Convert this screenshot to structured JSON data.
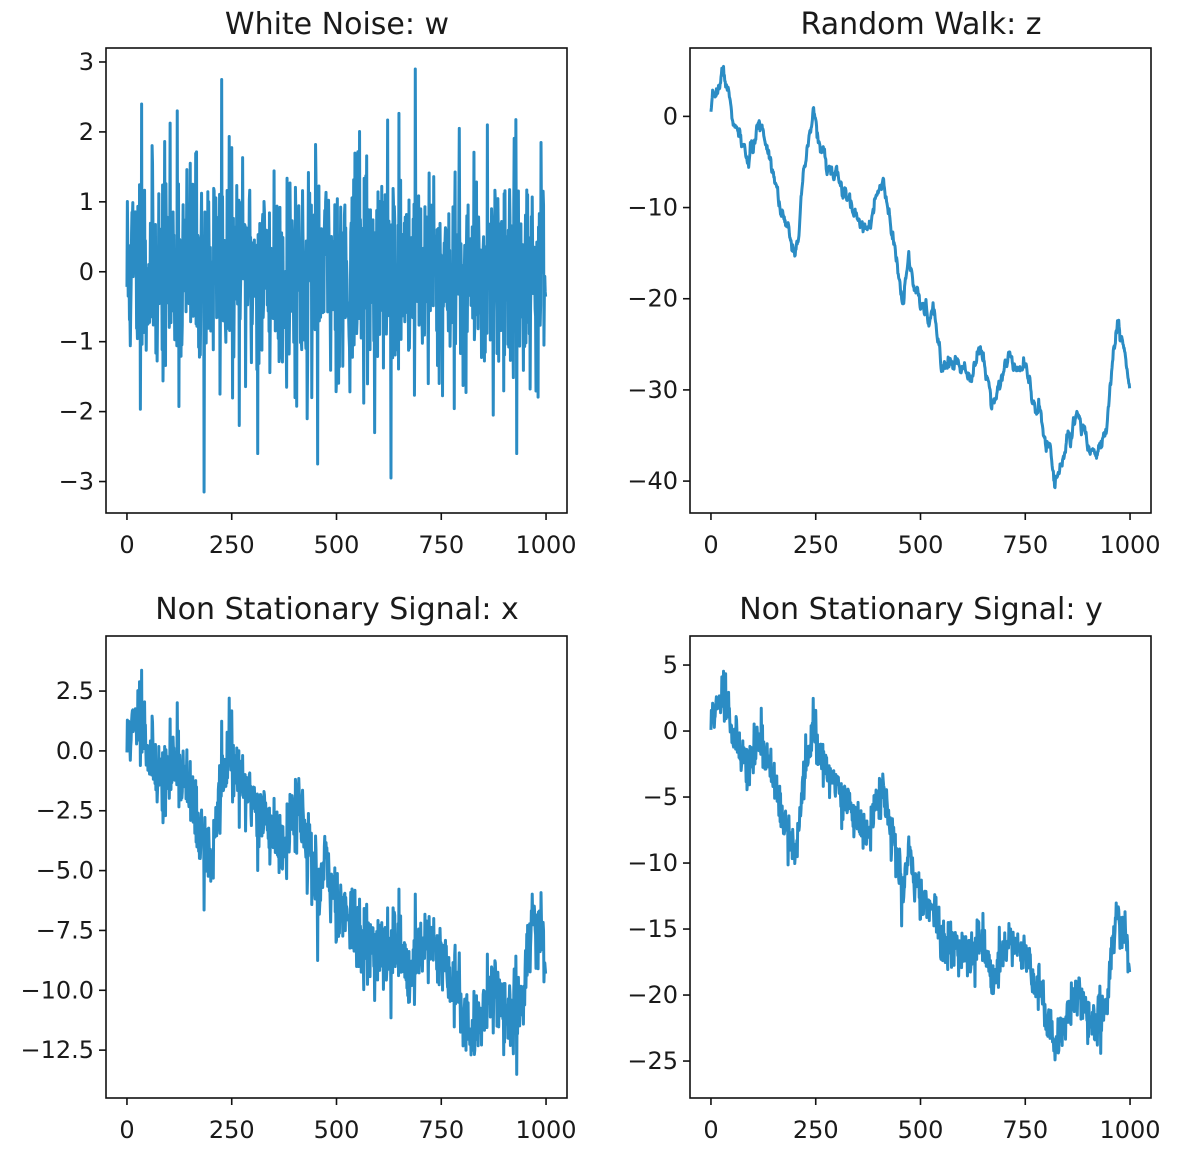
{
  "chart_data": [
    {
      "type": "line",
      "title": "White Noise: w",
      "xlabel": "",
      "ylabel": "",
      "xlim": [
        -50,
        1050
      ],
      "ylim": [
        -3.45,
        3.2
      ],
      "xticks": [
        0,
        250,
        500,
        750,
        1000
      ],
      "xtick_labels": [
        "0",
        "250",
        "500",
        "750",
        "1000"
      ],
      "yticks": [
        3,
        2,
        1,
        0,
        -1,
        -2,
        -3
      ],
      "ytick_labels": [
        "3",
        "2",
        "1",
        "0",
        "−1",
        "−2",
        "−3"
      ],
      "grid": false,
      "n_points": 1000,
      "series": [
        {
          "generator": "white_noise",
          "seed": 11,
          "amplitude": 1.0,
          "extremes": [
            [
              184,
              -3.15
            ],
            [
              226,
              2.75
            ],
            [
              688,
              2.9
            ],
            [
              630,
              -2.95
            ],
            [
              455,
              -2.75
            ],
            [
              312,
              -2.6
            ],
            [
              930,
              -2.6
            ],
            [
              35,
              2.4
            ],
            [
              120,
              2.3
            ],
            [
              860,
              2.1
            ]
          ]
        }
      ],
      "color": "#2b8cc4"
    },
    {
      "type": "line",
      "title": "Random Walk: z",
      "xlabel": "",
      "ylabel": "",
      "xlim": [
        -50,
        1050
      ],
      "ylim": [
        -43.5,
        7.5
      ],
      "xticks": [
        0,
        250,
        500,
        750,
        1000
      ],
      "xtick_labels": [
        "0",
        "250",
        "500",
        "750",
        "1000"
      ],
      "yticks": [
        0,
        -10,
        -20,
        -30,
        -40
      ],
      "ytick_labels": [
        "0",
        "−10",
        "−20",
        "−30",
        "−40"
      ],
      "grid": false,
      "n_points": 1000,
      "series": [
        {
          "generator": "random_walk",
          "seed": 7,
          "anchors": [
            [
              0,
              0
            ],
            [
              30,
              5
            ],
            [
              60,
              -2
            ],
            [
              90,
              -5
            ],
            [
              120,
              -1
            ],
            [
              150,
              -5
            ],
            [
              180,
              -13
            ],
            [
              200,
              -14
            ],
            [
              220,
              -8
            ],
            [
              245,
              0
            ],
            [
              270,
              -5
            ],
            [
              300,
              -7
            ],
            [
              330,
              -10
            ],
            [
              360,
              -12
            ],
            [
              390,
              -10
            ],
            [
              410,
              -8
            ],
            [
              430,
              -13
            ],
            [
              455,
              -20
            ],
            [
              470,
              -16
            ],
            [
              500,
              -22
            ],
            [
              530,
              -22
            ],
            [
              550,
              -27
            ],
            [
              600,
              -27
            ],
            [
              650,
              -26
            ],
            [
              670,
              -31
            ],
            [
              700,
              -27
            ],
            [
              750,
              -26
            ],
            [
              780,
              -33
            ],
            [
              810,
              -36
            ],
            [
              820,
              -41
            ],
            [
              850,
              -35
            ],
            [
              880,
              -33
            ],
            [
              920,
              -37
            ],
            [
              940,
              -35
            ],
            [
              970,
              -22
            ],
            [
              1000,
              -30
            ]
          ]
        }
      ],
      "color": "#2b8cc4"
    },
    {
      "type": "line",
      "title": "Non Stationary Signal: x",
      "xlabel": "",
      "ylabel": "",
      "xlim": [
        -50,
        1050
      ],
      "ylim": [
        -14.5,
        4.8
      ],
      "xticks": [
        0,
        250,
        500,
        750,
        1000
      ],
      "xtick_labels": [
        "0",
        "250",
        "500",
        "750",
        "1000"
      ],
      "yticks": [
        2.5,
        0.0,
        -2.5,
        -5.0,
        -7.5,
        -10.0,
        -12.5
      ],
      "ytick_labels": [
        "2.5",
        "0.0",
        "−2.5",
        "−5.0",
        "−7.5",
        "−10.0",
        "−12.5"
      ],
      "grid": false,
      "n_points": 1000,
      "series": [
        {
          "generator": "walk_scaled_plus_noise",
          "walk_scale": 0.3,
          "noise_amplitude": 1.0
        }
      ],
      "color": "#2b8cc4"
    },
    {
      "type": "line",
      "title": "Non Stationary Signal: y",
      "xlabel": "",
      "ylabel": "",
      "xlim": [
        -50,
        1050
      ],
      "ylim": [
        -27.8,
        7.2
      ],
      "xticks": [
        0,
        250,
        500,
        750,
        1000
      ],
      "xtick_labels": [
        "0",
        "250",
        "500",
        "750",
        "1000"
      ],
      "yticks": [
        5,
        0,
        -5,
        -10,
        -15,
        -20,
        -25
      ],
      "ytick_labels": [
        "5",
        "0",
        "−5",
        "−10",
        "−15",
        "−20",
        "−25"
      ],
      "grid": false,
      "n_points": 1000,
      "series": [
        {
          "generator": "walk_scaled_plus_noise",
          "walk_scale": 0.6,
          "noise_amplitude": 1.0
        }
      ],
      "color": "#2b8cc4"
    }
  ]
}
